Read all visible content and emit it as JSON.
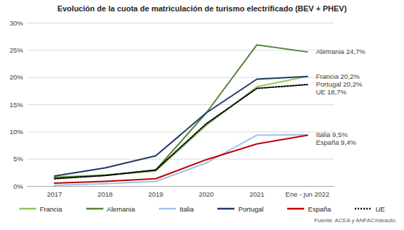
{
  "chart_data": {
    "type": "line",
    "title": "Evolución de la cuota de matriculación de turismo electrificado (BEV + PHEV)",
    "categories": [
      "2017",
      "2018",
      "2019",
      "2020",
      "2021",
      "Ene - jun 2022"
    ],
    "series": [
      {
        "name": "Francia",
        "color": "#92c460",
        "line_style": "solid",
        "values": [
          1.7,
          2.1,
          2.8,
          11.2,
          18.3,
          20.2
        ]
      },
      {
        "name": "Alemania",
        "color": "#548235",
        "line_style": "solid",
        "values": [
          1.6,
          2.0,
          3.0,
          13.5,
          26.0,
          24.7
        ]
      },
      {
        "name": "Italia",
        "color": "#9dc3e6",
        "line_style": "solid",
        "values": [
          0.2,
          0.5,
          0.9,
          4.3,
          9.4,
          9.5
        ]
      },
      {
        "name": "Portugal",
        "color": "#1f3864",
        "line_style": "solid",
        "values": [
          1.9,
          3.4,
          5.6,
          13.5,
          19.7,
          20.2
        ]
      },
      {
        "name": "España",
        "color": "#c00000",
        "line_style": "solid",
        "values": [
          0.6,
          0.9,
          1.4,
          4.9,
          7.8,
          9.4
        ]
      },
      {
        "name": "UE",
        "color": "#000000",
        "line_style": "dotted",
        "values": [
          1.4,
          2.0,
          3.0,
          11.5,
          18.0,
          18.7
        ]
      }
    ],
    "annotations": [
      {
        "text": "Alemania 24,7%",
        "x": "Ene - jun 2022",
        "y": 24.7
      },
      {
        "text": "Francia 20,2%",
        "x": "Ene - jun 2022",
        "y": 20.2
      },
      {
        "text": "Portugal 20,2%",
        "x": "Ene - jun 2022",
        "y": 20.2
      },
      {
        "text": "UE 18,7%",
        "x": "Ene - jun 2022",
        "y": 18.7
      },
      {
        "text": "Italia 9,5%",
        "x": "Ene - jun 2022",
        "y": 9.5
      },
      {
        "text": "España 9,4%",
        "x": "Ene - jun 2022",
        "y": 9.4
      }
    ],
    "ylim": [
      0,
      30
    ],
    "yticks": [
      {
        "value": 0,
        "label": "0%"
      },
      {
        "value": 5,
        "label": "5%"
      },
      {
        "value": 10,
        "label": "10%"
      },
      {
        "value": 15,
        "label": "15%"
      },
      {
        "value": 20,
        "label": "20%"
      },
      {
        "value": 25,
        "label": "25%"
      },
      {
        "value": 30,
        "label": "30%"
      }
    ],
    "grid": true,
    "legend": "bottom",
    "source": "Fuente: ACEA y ANFAC/Ideauto."
  }
}
